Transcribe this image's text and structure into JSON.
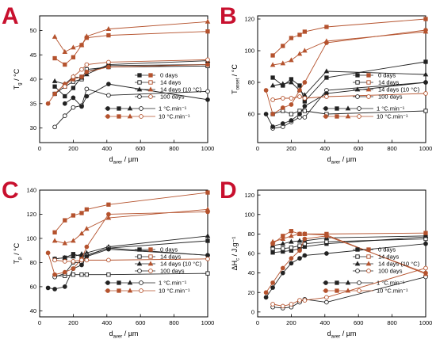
{
  "colors": {
    "black": "#222222",
    "brown": "#b5532e",
    "letter": "#c8102e"
  },
  "legend_entries": [
    "0 days",
    "14 days",
    "14 days (10 °C)",
    "100 days",
    "1 °C.min⁻¹",
    "10 °C.min⁻¹"
  ],
  "chart_data": [
    {
      "type": "line",
      "letter": "A",
      "xlabel": "d",
      "xlabel_sub": "aver",
      "xlabel_unit": "/  µm",
      "ylabel": "T",
      "ylabel_sub": "g",
      "ylabel_unit": "/  °C",
      "xlim": [
        0,
        1000
      ],
      "ylim": [
        27,
        53
      ],
      "xticks": [
        0,
        200,
        400,
        600,
        800,
        1000
      ],
      "yticks": [
        30,
        35,
        40,
        45,
        50
      ],
      "x": [
        50,
        90,
        150,
        200,
        250,
        280,
        410,
        1000
      ],
      "series": [
        {
          "color": "black",
          "marker": "square-filled",
          "y": [
            null,
            38.5,
            36.5,
            38.2,
            40.5,
            41.5,
            42.8,
            43.0
          ]
        },
        {
          "color": "black",
          "marker": "square-open",
          "y": [
            null,
            37.0,
            38.5,
            39.5,
            40.0,
            42.0,
            42.5,
            42.7
          ]
        },
        {
          "color": "black",
          "marker": "triangle",
          "y": [
            null,
            39.6,
            39.0,
            40.5,
            40.3,
            41.0,
            43.0,
            43.8
          ]
        },
        {
          "color": "black",
          "marker": "circle-open",
          "y": [
            null,
            30.2,
            32.5,
            34.2,
            34.6,
            38.0,
            36.7,
            37.5
          ]
        },
        {
          "color": "black",
          "marker": "circle-filled",
          "y": [
            null,
            null,
            35.0,
            36.2,
            34.4,
            36.5,
            39.0,
            35.8
          ]
        },
        {
          "color": "brown",
          "marker": "circle-filled",
          "y": [
            35.0,
            37.0,
            39.0,
            40.0,
            40.5,
            41.5,
            42.5,
            43.0
          ]
        },
        {
          "color": "brown",
          "marker": "square-filled",
          "y": [
            null,
            44.3,
            43.0,
            44.5,
            47.0,
            48.5,
            49.0,
            49.8
          ]
        },
        {
          "color": "brown",
          "marker": "triangle",
          "y": [
            null,
            48.7,
            45.6,
            46.5,
            47.0,
            48.8,
            50.3,
            51.8
          ]
        },
        {
          "color": "brown",
          "marker": "circle-open",
          "y": [
            null,
            null,
            38.5,
            40.5,
            42.0,
            43.0,
            43.5,
            44.0
          ]
        }
      ]
    },
    {
      "type": "line",
      "letter": "B",
      "xlabel": "d",
      "xlabel_sub": "aver",
      "xlabel_unit": "/  µm",
      "ylabel": "T",
      "ylabel_sub": "onset",
      "ylabel_unit": "/  °C",
      "xlim": [
        0,
        1000
      ],
      "ylim": [
        42,
        122
      ],
      "xticks": [
        0,
        200,
        400,
        600,
        800,
        1000
      ],
      "yticks": [
        60,
        80,
        100,
        120
      ],
      "x": [
        50,
        90,
        150,
        200,
        250,
        280,
        410,
        1000
      ],
      "series": [
        {
          "color": "black",
          "marker": "square-filled",
          "y": [
            null,
            83,
            78,
            82,
            78,
            68,
            83,
            93
          ]
        },
        {
          "color": "black",
          "marker": "square-open",
          "y": [
            null,
            60,
            62,
            60,
            62,
            62,
            60,
            62
          ]
        },
        {
          "color": "black",
          "marker": "triangle",
          "y": [
            null,
            78,
            79,
            80,
            75,
            72,
            87,
            85
          ]
        },
        {
          "color": "black",
          "marker": "circle-open",
          "y": [
            null,
            51,
            52,
            55,
            58,
            58,
            75,
            80
          ]
        },
        {
          "color": "black",
          "marker": "circle-filled",
          "y": [
            60,
            52,
            54,
            56,
            60,
            65,
            73,
            80
          ]
        },
        {
          "color": "brown",
          "marker": "circle-filled",
          "y": [
            75,
            60,
            64,
            66,
            75,
            80,
            105,
            113
          ]
        },
        {
          "color": "brown",
          "marker": "square-filled",
          "y": [
            null,
            97,
            103,
            108,
            110,
            112,
            115,
            120
          ]
        },
        {
          "color": "brown",
          "marker": "triangle",
          "y": [
            null,
            91,
            92,
            94,
            98,
            100,
            106,
            112
          ]
        },
        {
          "color": "brown",
          "marker": "circle-open",
          "y": [
            null,
            69,
            70,
            70,
            71,
            70,
            71,
            73
          ]
        }
      ]
    },
    {
      "type": "line",
      "letter": "C",
      "xlabel": "d",
      "xlabel_sub": "aver",
      "xlabel_unit": "/  µm",
      "ylabel": "T",
      "ylabel_sub": "p",
      "ylabel_unit": "/  °C",
      "xlim": [
        0,
        1000
      ],
      "ylim": [
        35,
        140
      ],
      "xticks": [
        0,
        200,
        400,
        600,
        800,
        1000
      ],
      "yticks": [
        40,
        60,
        80,
        100,
        120,
        140
      ],
      "x": [
        50,
        90,
        150,
        200,
        250,
        280,
        410,
        1000
      ],
      "series": [
        {
          "color": "black",
          "marker": "square-filled",
          "y": [
            null,
            83,
            84,
            87,
            85,
            86,
            92,
            98
          ]
        },
        {
          "color": "black",
          "marker": "square-open",
          "y": [
            null,
            69,
            69,
            70,
            70,
            70,
            70,
            71
          ]
        },
        {
          "color": "black",
          "marker": "triangle",
          "y": [
            null,
            83,
            84,
            85,
            87,
            88,
            93,
            102
          ]
        },
        {
          "color": "black",
          "marker": "circle-open",
          "y": [
            null,
            68,
            71,
            80,
            80,
            86,
            92,
            86
          ]
        },
        {
          "color": "black",
          "marker": "circle-filled",
          "y": [
            59,
            58,
            60,
            75,
            78,
            85,
            91,
            86
          ]
        },
        {
          "color": "brown",
          "marker": "circle-filled",
          "y": [
            88,
            70,
            72,
            75,
            83,
            93,
            120,
            122
          ]
        },
        {
          "color": "brown",
          "marker": "square-filled",
          "y": [
            null,
            105,
            115,
            119,
            121,
            124,
            128,
            138
          ]
        },
        {
          "color": "brown",
          "marker": "triangle",
          "y": [
            null,
            98,
            96,
            98,
            104,
            108,
            117,
            124
          ]
        },
        {
          "color": "brown",
          "marker": "circle-open",
          "y": [
            null,
            82,
            81,
            81,
            82,
            82,
            82,
            83
          ]
        }
      ]
    },
    {
      "type": "line",
      "letter": "D",
      "xlabel": "d",
      "xlabel_sub": "aver",
      "xlabel_unit": "/  µm",
      "ylabel": "ΔH",
      "ylabel_sub": "c",
      "ylabel_unit": "/  J.g⁻¹",
      "xlim": [
        0,
        1000
      ],
      "ylim": [
        -5,
        125
      ],
      "xticks": [
        0,
        200,
        400,
        600,
        800,
        1000
      ],
      "yticks": [
        0,
        20,
        40,
        60,
        80,
        100,
        120
      ],
      "x": [
        50,
        90,
        150,
        200,
        250,
        280,
        410,
        1000
      ],
      "series": [
        {
          "color": "black",
          "marker": "square-filled",
          "y": [
            null,
            61,
            62,
            63,
            65,
            67,
            70,
            77
          ]
        },
        {
          "color": "black",
          "marker": "square-open",
          "y": [
            null,
            65,
            65,
            66,
            68,
            70,
            72,
            75
          ]
        },
        {
          "color": "black",
          "marker": "triangle",
          "y": [
            null,
            68,
            70,
            72,
            73,
            73,
            76,
            78
          ]
        },
        {
          "color": "black",
          "marker": "circle-open",
          "y": [
            null,
            5,
            4,
            5,
            10,
            13,
            10,
            36
          ]
        },
        {
          "color": "black",
          "marker": "circle-filled",
          "y": [
            15,
            25,
            40,
            50,
            55,
            58,
            60,
            70
          ]
        },
        {
          "color": "brown",
          "marker": "circle-filled",
          "y": [
            20,
            30,
            45,
            55,
            63,
            75,
            78,
            40
          ]
        },
        {
          "color": "brown",
          "marker": "square-filled",
          "y": [
            null,
            70,
            78,
            83,
            80,
            80,
            80,
            81
          ]
        },
        {
          "color": "brown",
          "marker": "triangle",
          "y": [
            null,
            72,
            75,
            78,
            80,
            80,
            79,
            39
          ]
        },
        {
          "color": "brown",
          "marker": "circle-open",
          "y": [
            null,
            8,
            6,
            8,
            12,
            12,
            15,
            45
          ]
        }
      ]
    }
  ]
}
